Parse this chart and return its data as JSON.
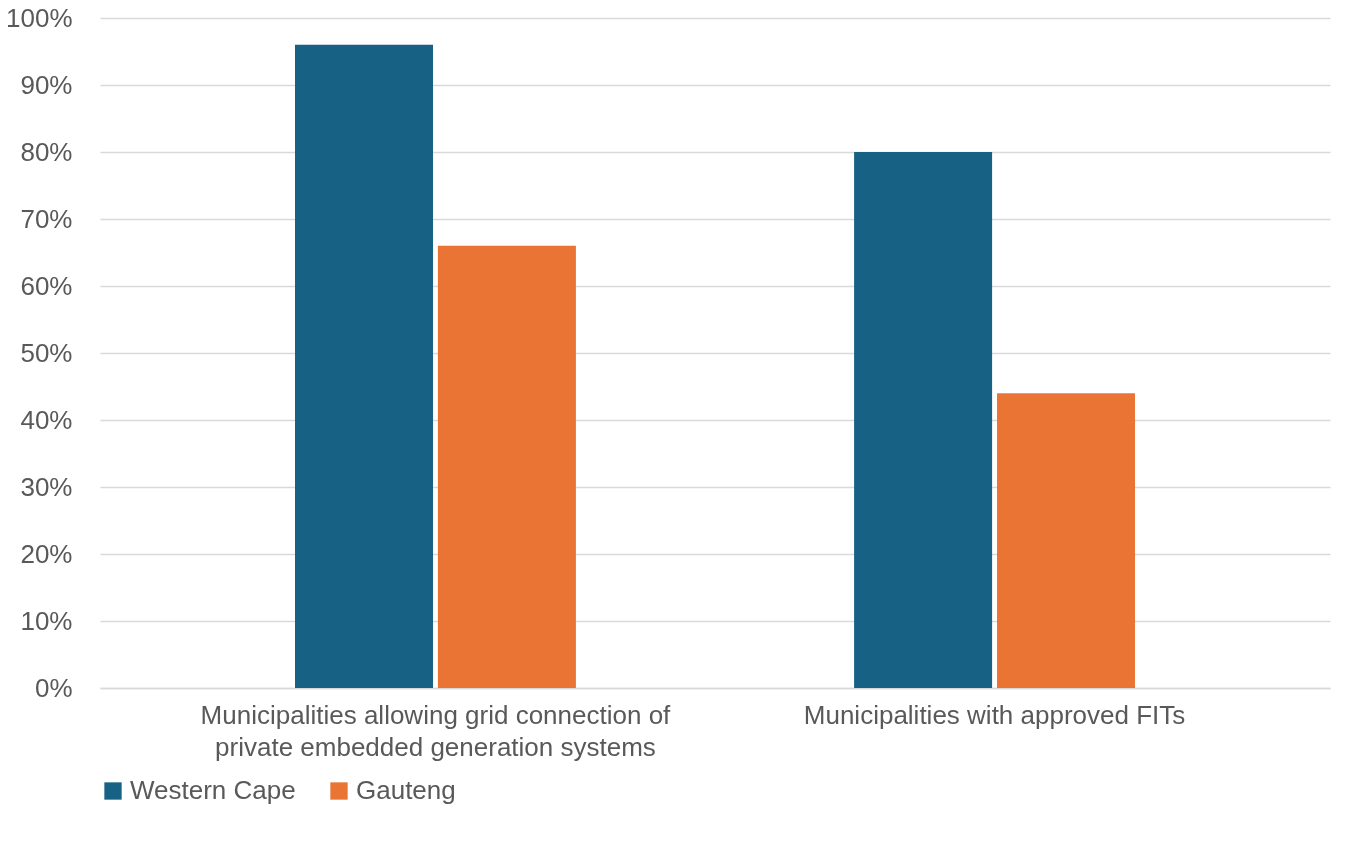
{
  "chart_data": {
    "type": "bar",
    "categories": [
      "Municipalities allowing grid connection of private embedded generation systems",
      "Municipalities with approved FITs"
    ],
    "series": [
      {
        "name": "Western Cape",
        "color": "#176184",
        "values": [
          96,
          80
        ]
      },
      {
        "name": "Gauteng",
        "color": "#e97434",
        "values": [
          66,
          44
        ]
      }
    ],
    "ylim": [
      0,
      100
    ],
    "yticks": [
      {
        "value": 0,
        "label": "0%"
      },
      {
        "value": 10,
        "label": "10%"
      },
      {
        "value": 20,
        "label": "20%"
      },
      {
        "value": 30,
        "label": "30%"
      },
      {
        "value": 40,
        "label": "40%"
      },
      {
        "value": 50,
        "label": "50%"
      },
      {
        "value": 60,
        "label": "60%"
      },
      {
        "value": 70,
        "label": "70%"
      },
      {
        "value": 80,
        "label": "80%"
      },
      {
        "value": 90,
        "label": "90%"
      },
      {
        "value": 100,
        "label": "100%"
      }
    ],
    "grid": "y",
    "legend": "bottom"
  }
}
